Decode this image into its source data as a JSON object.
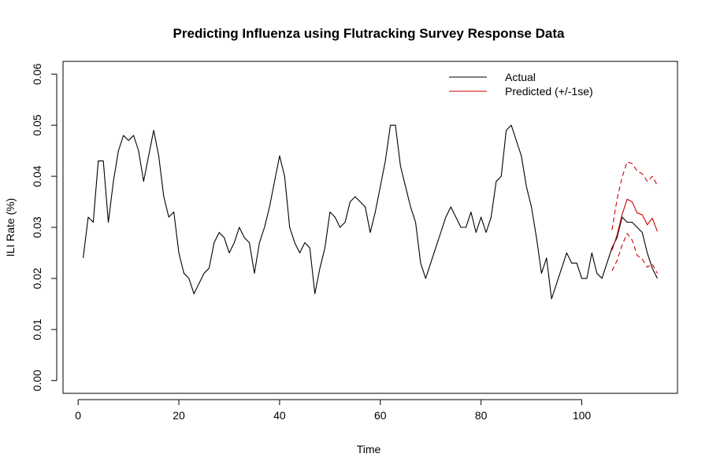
{
  "chart_data": {
    "type": "line",
    "title": "Predicting Influenza using Flutracking Survey Response Data",
    "xlabel": "Time",
    "ylabel": "ILI Rate (%)",
    "xlim": [
      -3,
      119
    ],
    "ylim": [
      -0.0025,
      0.0625
    ],
    "xticks": [
      0,
      20,
      40,
      60,
      80,
      100
    ],
    "yticks": [
      0.0,
      0.01,
      0.02,
      0.03,
      0.04,
      0.05,
      0.06
    ],
    "ytick_labels": [
      "0.00",
      "0.01",
      "0.02",
      "0.03",
      "0.04",
      "0.05",
      "0.06"
    ],
    "grid": false,
    "legend_position": "top-right",
    "legend": [
      {
        "label": "Actual",
        "color": "#000000"
      },
      {
        "label": "Predicted (+/-1se)",
        "color": "#cc0000"
      }
    ],
    "series": [
      {
        "name": "Actual",
        "color": "#000000",
        "style": "solid",
        "x": [
          1,
          2,
          3,
          4,
          5,
          6,
          7,
          8,
          9,
          10,
          11,
          12,
          13,
          14,
          15,
          16,
          17,
          18,
          19,
          20,
          21,
          22,
          23,
          24,
          25,
          26,
          27,
          28,
          29,
          30,
          31,
          32,
          33,
          34,
          35,
          36,
          37,
          38,
          39,
          40,
          41,
          42,
          43,
          44,
          45,
          46,
          47,
          48,
          49,
          50,
          51,
          52,
          53,
          54,
          55,
          56,
          57,
          58,
          59,
          60,
          61,
          62,
          63,
          64,
          65,
          66,
          67,
          68,
          69,
          70,
          71,
          72,
          73,
          74,
          75,
          76,
          77,
          78,
          79,
          80,
          81,
          82,
          83,
          84,
          85,
          86,
          87,
          88,
          89,
          90,
          91,
          92,
          93,
          94,
          95,
          96,
          97,
          98,
          99,
          100,
          101,
          102,
          103,
          104,
          105,
          106,
          107,
          108,
          109,
          110,
          111,
          112,
          113,
          114,
          115
        ],
        "y": [
          0.024,
          0.032,
          0.031,
          0.043,
          0.043,
          0.031,
          0.039,
          0.045,
          0.048,
          0.047,
          0.048,
          0.045,
          0.039,
          0.044,
          0.049,
          0.044,
          0.036,
          0.032,
          0.033,
          0.025,
          0.021,
          0.02,
          0.017,
          0.019,
          0.021,
          0.022,
          0.027,
          0.029,
          0.028,
          0.025,
          0.027,
          0.03,
          0.028,
          0.027,
          0.021,
          0.027,
          0.03,
          0.034,
          0.039,
          0.044,
          0.04,
          0.03,
          0.027,
          0.025,
          0.027,
          0.026,
          0.017,
          0.022,
          0.026,
          0.033,
          0.032,
          0.03,
          0.031,
          0.035,
          0.036,
          0.035,
          0.034,
          0.029,
          0.033,
          0.038,
          0.043,
          0.05,
          0.05,
          0.042,
          0.038,
          0.034,
          0.031,
          0.023,
          0.02,
          0.023,
          0.026,
          0.029,
          0.032,
          0.034,
          0.032,
          0.03,
          0.03,
          0.033,
          0.029,
          0.032,
          0.029,
          0.032,
          0.039,
          0.04,
          0.049,
          0.05,
          0.047,
          0.044,
          0.038,
          0.034,
          0.028,
          0.021,
          0.024,
          0.016,
          0.019,
          0.022,
          0.025,
          0.023,
          0.023,
          0.02,
          0.02,
          0.025,
          0.021,
          0.02,
          0.023,
          0.026,
          0.028,
          0.032,
          0.031,
          0.031,
          0.03,
          0.029,
          0.025,
          0.022,
          0.02
        ]
      },
      {
        "name": "Predicted (+/-1se)",
        "color": "#cc0000",
        "style": "solid",
        "x": [
          106,
          107,
          108,
          109,
          110,
          111,
          112,
          113,
          114,
          115
        ],
        "y": [
          0.0255,
          0.0285,
          0.0325,
          0.0355,
          0.035,
          0.0328,
          0.0325,
          0.0305,
          0.0318,
          0.0292
        ]
      },
      {
        "name": "Upper (+1se)",
        "color": "#cc0000",
        "style": "dashed",
        "x": [
          106,
          107,
          108,
          109,
          110,
          111,
          112,
          113,
          114,
          115
        ],
        "y": [
          0.0295,
          0.0355,
          0.0398,
          0.0428,
          0.0425,
          0.041,
          0.0405,
          0.039,
          0.04,
          0.0382
        ]
      },
      {
        "name": "Lower (-1se)",
        "color": "#cc0000",
        "style": "dashed",
        "x": [
          106,
          107,
          108,
          109,
          110,
          111,
          112,
          113,
          114,
          115
        ],
        "y": [
          0.0215,
          0.0235,
          0.0265,
          0.0288,
          0.0275,
          0.0245,
          0.0238,
          0.0222,
          0.0228,
          0.021
        ]
      }
    ]
  }
}
